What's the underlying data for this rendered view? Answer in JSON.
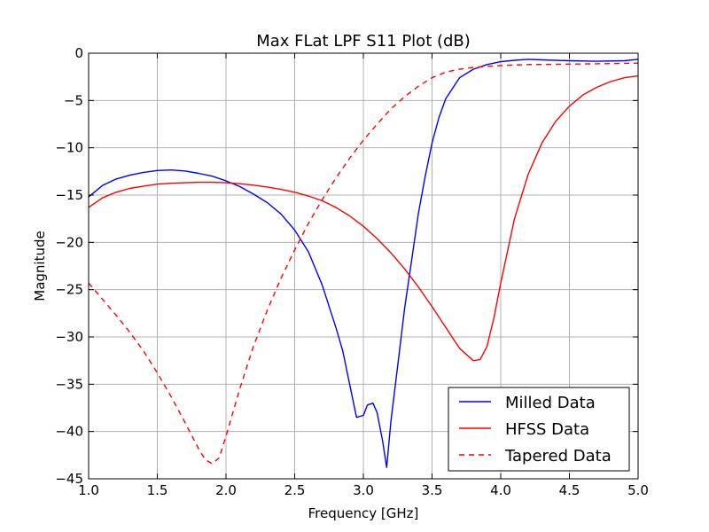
{
  "chart_data": {
    "type": "line",
    "title": "Max FLat LPF S11 Plot (dB)",
    "xlabel": "Frequency [GHz]",
    "ylabel": "Magnitude",
    "xlim": [
      1.0,
      5.0
    ],
    "ylim": [
      -45,
      0
    ],
    "x_ticks": [
      1.0,
      1.5,
      2.0,
      2.5,
      3.0,
      3.5,
      4.0,
      4.5,
      5.0
    ],
    "x_tick_labels": [
      "1.0",
      "1.5",
      "2.0",
      "2.5",
      "3.0",
      "3.5",
      "4.0",
      "4.5",
      "5.0"
    ],
    "y_ticks": [
      0,
      -5,
      -10,
      -15,
      -20,
      -25,
      -30,
      -35,
      -40,
      -45
    ],
    "y_tick_labels": [
      "0",
      "−5",
      "−10",
      "−15",
      "−20",
      "−25",
      "−30",
      "−35",
      "−40",
      "−45"
    ],
    "grid": true,
    "legend": "lower-right",
    "series": [
      {
        "name": "Milled Data",
        "color": "#0000ff",
        "style": "solid",
        "points": [
          [
            1.0,
            -15.2
          ],
          [
            1.1,
            -14.0
          ],
          [
            1.2,
            -13.3
          ],
          [
            1.3,
            -12.9
          ],
          [
            1.4,
            -12.6
          ],
          [
            1.5,
            -12.4
          ],
          [
            1.6,
            -12.35
          ],
          [
            1.7,
            -12.45
          ],
          [
            1.8,
            -12.7
          ],
          [
            1.9,
            -13.0
          ],
          [
            2.0,
            -13.5
          ],
          [
            2.1,
            -14.1
          ],
          [
            2.2,
            -14.9
          ],
          [
            2.3,
            -15.8
          ],
          [
            2.4,
            -17.0
          ],
          [
            2.5,
            -18.7
          ],
          [
            2.6,
            -21.0
          ],
          [
            2.7,
            -24.5
          ],
          [
            2.8,
            -29.0
          ],
          [
            2.85,
            -31.5
          ],
          [
            2.9,
            -35.0
          ],
          [
            2.95,
            -38.5
          ],
          [
            3.0,
            -38.3
          ],
          [
            3.03,
            -37.2
          ],
          [
            3.07,
            -37.0
          ],
          [
            3.1,
            -38.0
          ],
          [
            3.14,
            -41.0
          ],
          [
            3.17,
            -43.8
          ],
          [
            3.2,
            -39.0
          ],
          [
            3.25,
            -33.0
          ],
          [
            3.3,
            -27.0
          ],
          [
            3.35,
            -22.0
          ],
          [
            3.4,
            -17.0
          ],
          [
            3.45,
            -13.0
          ],
          [
            3.5,
            -9.5
          ],
          [
            3.55,
            -6.8
          ],
          [
            3.6,
            -4.8
          ],
          [
            3.7,
            -2.6
          ],
          [
            3.8,
            -1.7
          ],
          [
            3.9,
            -1.2
          ],
          [
            4.0,
            -0.9
          ],
          [
            4.1,
            -0.75
          ],
          [
            4.2,
            -0.65
          ],
          [
            4.3,
            -0.7
          ],
          [
            4.5,
            -0.8
          ],
          [
            4.7,
            -0.85
          ],
          [
            4.9,
            -0.8
          ],
          [
            5.0,
            -0.65
          ]
        ]
      },
      {
        "name": "HFSS Data",
        "color": "#ff0000",
        "style": "solid",
        "points": [
          [
            1.0,
            -16.3
          ],
          [
            1.1,
            -15.3
          ],
          [
            1.2,
            -14.7
          ],
          [
            1.3,
            -14.3
          ],
          [
            1.4,
            -14.05
          ],
          [
            1.5,
            -13.85
          ],
          [
            1.6,
            -13.75
          ],
          [
            1.7,
            -13.7
          ],
          [
            1.8,
            -13.65
          ],
          [
            1.9,
            -13.65
          ],
          [
            2.0,
            -13.7
          ],
          [
            2.1,
            -13.8
          ],
          [
            2.2,
            -13.95
          ],
          [
            2.3,
            -14.15
          ],
          [
            2.4,
            -14.4
          ],
          [
            2.5,
            -14.7
          ],
          [
            2.6,
            -15.1
          ],
          [
            2.7,
            -15.6
          ],
          [
            2.8,
            -16.3
          ],
          [
            2.9,
            -17.2
          ],
          [
            3.0,
            -18.3
          ],
          [
            3.1,
            -19.6
          ],
          [
            3.2,
            -21.1
          ],
          [
            3.3,
            -22.8
          ],
          [
            3.4,
            -24.7
          ],
          [
            3.5,
            -26.8
          ],
          [
            3.6,
            -29.0
          ],
          [
            3.7,
            -31.2
          ],
          [
            3.8,
            -32.5
          ],
          [
            3.85,
            -32.4
          ],
          [
            3.9,
            -31.0
          ],
          [
            3.95,
            -28.0
          ],
          [
            4.0,
            -24.3
          ],
          [
            4.1,
            -17.5
          ],
          [
            4.2,
            -12.8
          ],
          [
            4.3,
            -9.5
          ],
          [
            4.4,
            -7.2
          ],
          [
            4.5,
            -5.6
          ],
          [
            4.6,
            -4.4
          ],
          [
            4.7,
            -3.6
          ],
          [
            4.8,
            -3.0
          ],
          [
            4.9,
            -2.6
          ],
          [
            5.0,
            -2.4
          ]
        ]
      },
      {
        "name": "Tapered Data",
        "color": "#ff0000",
        "style": "dashed",
        "points": [
          [
            1.0,
            -24.3
          ],
          [
            1.1,
            -26.0
          ],
          [
            1.2,
            -27.7
          ],
          [
            1.3,
            -29.5
          ],
          [
            1.4,
            -31.5
          ],
          [
            1.5,
            -33.8
          ],
          [
            1.6,
            -36.3
          ],
          [
            1.7,
            -39.0
          ],
          [
            1.8,
            -41.8
          ],
          [
            1.85,
            -43.0
          ],
          [
            1.9,
            -43.4
          ],
          [
            1.95,
            -42.8
          ],
          [
            2.0,
            -40.5
          ],
          [
            2.1,
            -35.5
          ],
          [
            2.2,
            -31.0
          ],
          [
            2.3,
            -27.2
          ],
          [
            2.4,
            -23.8
          ],
          [
            2.5,
            -20.8
          ],
          [
            2.6,
            -18.0
          ],
          [
            2.7,
            -15.5
          ],
          [
            2.8,
            -13.2
          ],
          [
            2.9,
            -11.1
          ],
          [
            3.0,
            -9.2
          ],
          [
            3.1,
            -7.5
          ],
          [
            3.2,
            -5.9
          ],
          [
            3.3,
            -4.6
          ],
          [
            3.4,
            -3.5
          ],
          [
            3.5,
            -2.6
          ],
          [
            3.6,
            -2.0
          ],
          [
            3.7,
            -1.7
          ],
          [
            3.8,
            -1.5
          ],
          [
            3.9,
            -1.4
          ],
          [
            4.0,
            -1.3
          ],
          [
            4.2,
            -1.2
          ],
          [
            4.5,
            -1.15
          ],
          [
            4.8,
            -1.1
          ],
          [
            5.0,
            -1.05
          ]
        ]
      }
    ]
  }
}
